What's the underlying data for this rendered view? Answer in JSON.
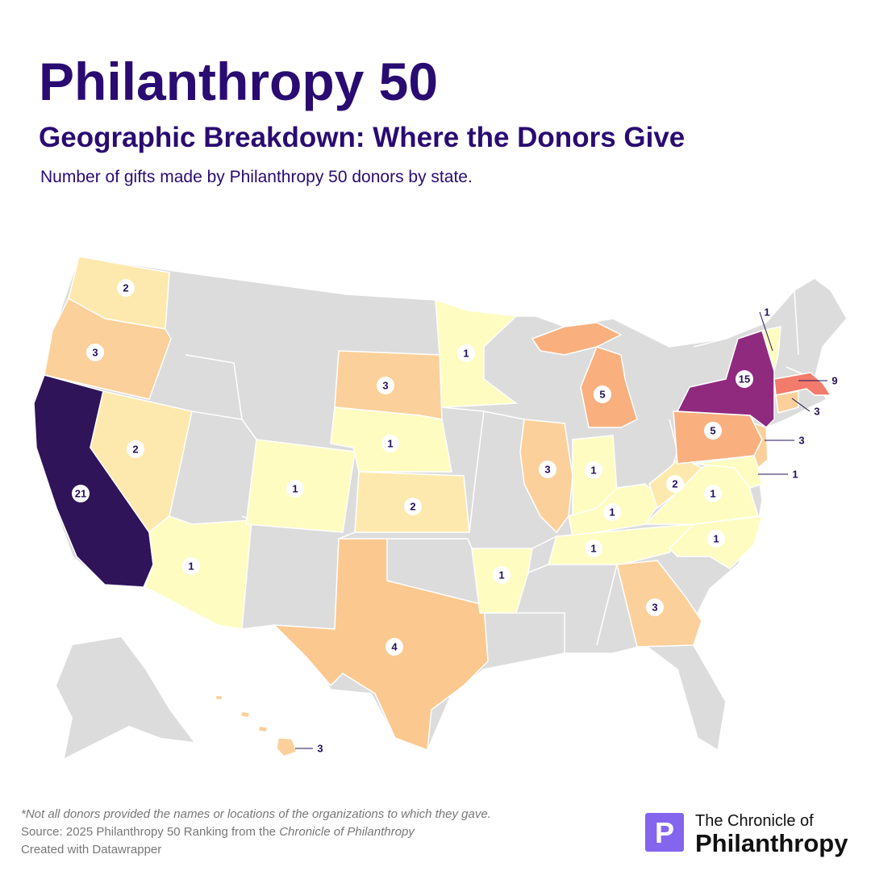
{
  "chart_data": {
    "type": "choropleth",
    "title": "Philanthropy 50",
    "subtitle": "Geographic Breakdown: Where the Donors Give",
    "description": "Number of gifts made by Philanthropy 50 donors by state.",
    "values": [
      21,
      2,
      3,
      2,
      1,
      1,
      3,
      1,
      2,
      4,
      1,
      1,
      3,
      1,
      5,
      1,
      1,
      3,
      1,
      1,
      2,
      5,
      3,
      1,
      15,
      1,
      9,
      3,
      3
    ],
    "colors": [
      "#2f1459",
      "#fde9ad",
      "#fcd09a",
      "#fde9ad",
      "#fefcc0",
      "#fefcc0",
      "#fcd09a",
      "#fefcc0",
      "#fde9ad",
      "#fbc88f",
      "#fefcc0",
      "#fefcc0",
      "#fcd09a",
      "#fefcc0",
      "#f9b07e",
      "#fefcc0",
      "#fefcc0",
      "#fcd09a",
      "#fefcc0",
      "#fefcc0",
      "#fde9ad",
      "#f9b07e",
      "#fcd09a",
      "#fefcc0",
      "#902a7e",
      "#fefcc0",
      "#f27b6c",
      "#fcd09a",
      "#fcd09a"
    ],
    "no_data_color": "#dcdcdc"
  },
  "footer": {
    "note": "*Not all donors provided the names or locations of the organizations to which they gave.",
    "source": [
      "Source: 2025 Philanthropy 50 Ranking from the",
      "Chronicle of Philanthropy"
    ],
    "credit": "Created with Datawrapper"
  },
  "logo": {
    "mark": "P",
    "line1": "The Chronicle of",
    "line2": "Philanthropy"
  }
}
